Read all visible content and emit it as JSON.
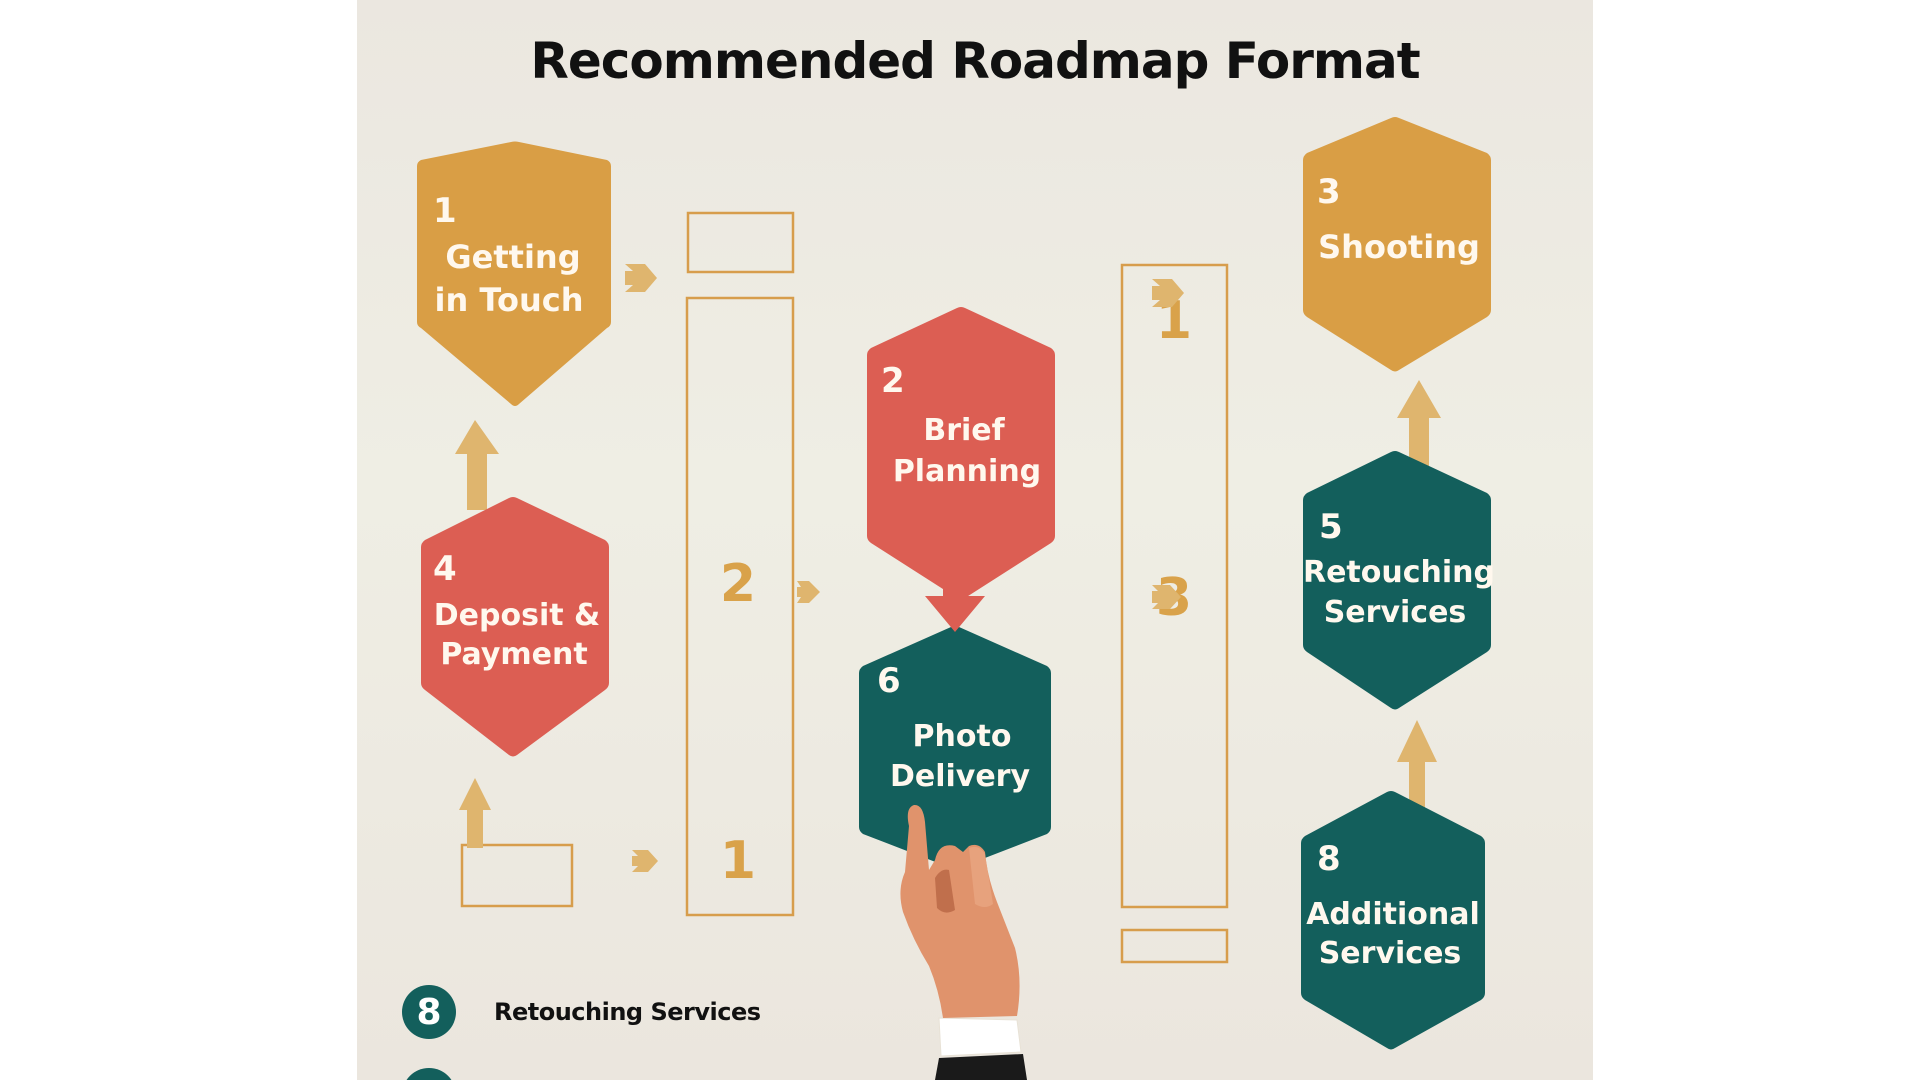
{
  "title": "Recommended Roadmap Format",
  "colors": {
    "gold": "#d99e45",
    "red": "#dc5e53",
    "teal": "#135f5c",
    "arrow": "#dfb56e",
    "column_outline": "#d79d4c"
  },
  "steps": [
    {
      "number": "1",
      "line1": "Getting",
      "line2": "in Touch",
      "color": "gold"
    },
    {
      "number": "2",
      "line1": "Brief",
      "line2": "Planning",
      "color": "red"
    },
    {
      "number": "3",
      "line1": "Shooting",
      "line2": "",
      "color": "gold"
    },
    {
      "number": "4",
      "line1": "Deposit &",
      "line2": "Payment",
      "color": "red"
    },
    {
      "number": "5",
      "line1": "Retouching",
      "line2": "Services",
      "color": "teal"
    },
    {
      "number": "6",
      "line1": "Photo",
      "line2": "Delivery",
      "color": "teal"
    },
    {
      "number": "8",
      "line1": "Additional",
      "line2": "Services",
      "color": "teal"
    }
  ],
  "column_numbers": [
    "2",
    "1",
    "1",
    "3"
  ],
  "legend": {
    "badge": "8",
    "label": "Retouching Services"
  },
  "illustration": "pointing-hand"
}
